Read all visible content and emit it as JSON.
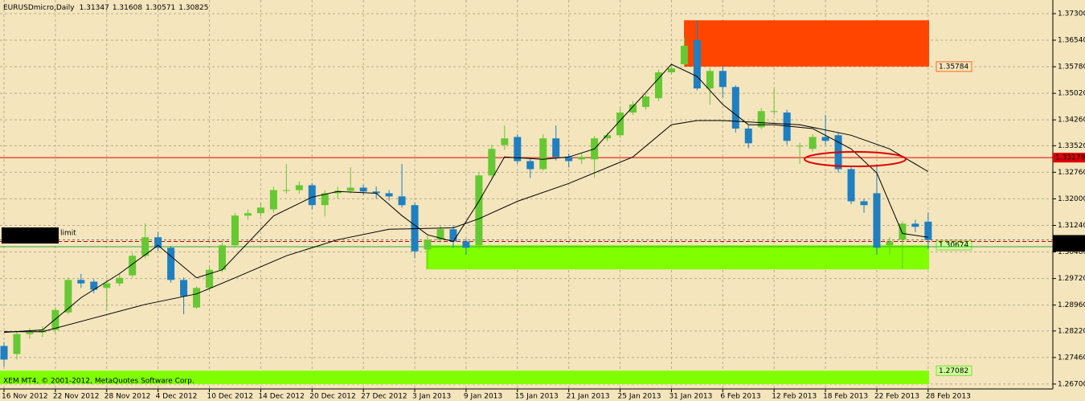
{
  "chart_data": {
    "type": "candlestick",
    "symbol": "EURUSDmicro,Daily",
    "copyright": "XEM MT4, © 2001-2012, MetaQuotes Software Corp.",
    "order_label": "limit",
    "up_color": "#66c832",
    "down_color": "#1f7fc0",
    "grid": true,
    "categories": [
      "16 Nov 2012",
      null,
      null,
      null,
      "22 Nov 2012",
      null,
      null,
      null,
      "28 Nov 2012",
      null,
      null,
      null,
      "4 Dec 2012",
      null,
      null,
      null,
      "10 Dec 2012",
      null,
      null,
      null,
      "14 Dec 2012",
      null,
      null,
      null,
      "20 Dec 2012",
      null,
      null,
      null,
      "27 Dec 2012",
      null,
      null,
      null,
      "3 Jan 2013",
      null,
      null,
      null,
      "9 Jan 2013",
      null,
      null,
      null,
      "15 Jan 2013",
      null,
      null,
      null,
      "21 Jan 2013",
      null,
      null,
      null,
      "25 Jan 2013",
      null,
      null,
      null,
      "31 Jan 2013",
      null,
      null,
      null,
      "6 Feb 2013",
      null,
      null,
      null,
      "12 Feb 2013",
      null,
      null,
      null,
      "18 Feb 2013",
      null,
      null,
      null,
      "22 Feb 2013",
      null,
      null,
      null,
      "28 Feb 2013"
    ],
    "open": [
      1.2779,
      1.2756,
      1.2813,
      1.2818,
      1.2825,
      1.2875,
      1.2968,
      1.2963,
      1.2945,
      1.2958,
      1.2981,
      1.3037,
      1.309,
      1.306,
      1.2968,
      1.2889,
      1.2945,
      1.2997,
      1.3067,
      1.3152,
      1.3159,
      1.317,
      1.3225,
      1.3225,
      1.3239,
      1.3182,
      1.3216,
      1.3223,
      1.3232,
      1.3221,
      1.3216,
      1.3207,
      1.3182,
      1.3055,
      1.3083,
      1.3113,
      1.3078,
      1.3067,
      1.3267,
      1.3354,
      1.3377,
      1.3308,
      1.3285,
      1.3373,
      1.332,
      1.3313,
      1.3313,
      1.3373,
      1.3382,
      1.3447,
      1.3463,
      1.3488,
      1.3562,
      1.3585,
      1.3654,
      1.3516,
      1.3566,
      1.352,
      1.3401,
      1.3405,
      1.3451,
      1.3447,
      1.335,
      1.3343,
      1.3377,
      1.3382,
      1.3285,
      1.3193,
      1.3216,
      1.3067,
      1.3083,
      1.3129,
      1.31347
    ],
    "high": [
      1.279,
      1.282,
      1.283,
      1.2835,
      1.289,
      1.2975,
      1.2985,
      1.297,
      1.2968,
      1.2985,
      1.3045,
      1.313,
      1.3105,
      1.3065,
      1.2975,
      1.295,
      1.3005,
      1.3075,
      1.316,
      1.317,
      1.319,
      1.3235,
      1.33,
      1.325,
      1.3245,
      1.3225,
      1.3235,
      1.329,
      1.324,
      1.3235,
      1.3225,
      1.33,
      1.319,
      1.3095,
      1.3125,
      1.3125,
      1.3085,
      1.3275,
      1.3355,
      1.341,
      1.3385,
      1.3315,
      1.3385,
      1.341,
      1.333,
      1.333,
      1.338,
      1.339,
      1.346,
      1.348,
      1.35,
      1.357,
      1.3585,
      1.366,
      1.3711,
      1.3575,
      1.358,
      1.3525,
      1.341,
      1.346,
      1.3516,
      1.3455,
      1.336,
      1.3385,
      1.344,
      1.339,
      1.3295,
      1.32,
      1.33,
      1.309,
      1.3135,
      1.314,
      1.31608
    ],
    "low": [
      1.272,
      1.274,
      1.28,
      1.2805,
      1.2815,
      1.287,
      1.2945,
      1.293,
      1.288,
      1.295,
      1.2975,
      1.303,
      1.305,
      1.296,
      1.287,
      1.2885,
      1.2935,
      1.299,
      1.306,
      1.314,
      1.315,
      1.316,
      1.3215,
      1.3215,
      1.317,
      1.315,
      1.32,
      1.3215,
      1.321,
      1.32,
      1.3195,
      1.3175,
      1.303,
      1.3,
      1.3075,
      1.306,
      1.304,
      1.3055,
      1.326,
      1.334,
      1.33,
      1.326,
      1.328,
      1.331,
      1.329,
      1.33,
      1.326,
      1.3365,
      1.3375,
      1.344,
      1.3455,
      1.348,
      1.3555,
      1.3578,
      1.351,
      1.347,
      1.349,
      1.339,
      1.3345,
      1.34,
      1.344,
      1.3355,
      1.33,
      1.3335,
      1.3355,
      1.3275,
      1.3185,
      1.316,
      1.304,
      1.304,
      1.3,
      1.3105,
      1.30571
    ],
    "close": [
      1.274,
      1.2813,
      1.2818,
      1.2825,
      1.2882,
      1.2968,
      1.2958,
      1.294,
      1.2958,
      1.2974,
      1.3037,
      1.309,
      1.306,
      1.2968,
      1.2921,
      1.2945,
      1.2997,
      1.3067,
      1.3152,
      1.3159,
      1.3175,
      1.3225,
      1.3225,
      1.3239,
      1.3182,
      1.3216,
      1.3223,
      1.3232,
      1.3221,
      1.3216,
      1.3207,
      1.3182,
      1.305,
      1.3083,
      1.3113,
      1.3078,
      1.306,
      1.3267,
      1.3343,
      1.3373,
      1.3308,
      1.3285,
      1.3373,
      1.332,
      1.3308,
      1.332,
      1.3373,
      1.3382,
      1.3447,
      1.347,
      1.3493,
      1.3562,
      1.3573,
      1.3638,
      1.3516,
      1.3566,
      1.352,
      1.3401,
      1.3359,
      1.3451,
      1.3451,
      1.3366,
      1.3352,
      1.3377,
      1.3366,
      1.3285,
      1.3193,
      1.3182,
      1.306,
      1.3078,
      1.3129,
      1.312,
      1.30825
    ],
    "moving_averages": [
      {
        "color": "#000000",
        "x": [
          0,
          3,
          6,
          9,
          12,
          15,
          17,
          21,
          24,
          26,
          29,
          31,
          33,
          35,
          37,
          39,
          42,
          44,
          46,
          48,
          50,
          52,
          54,
          56,
          58,
          60,
          63,
          66,
          68,
          70,
          72
        ],
        "values": [
          1.2818,
          1.2825,
          1.2917,
          1.2986,
          1.3067,
          1.2974,
          1.2997,
          1.3151,
          1.3205,
          1.3221,
          1.3216,
          1.3152,
          1.3097,
          1.3078,
          1.3193,
          1.332,
          1.3313,
          1.332,
          1.3343,
          1.3424,
          1.3504,
          1.3585,
          1.355,
          1.347,
          1.3412,
          1.3412,
          1.3401,
          1.3343,
          1.3274,
          1.3101,
          1.309
        ]
      },
      {
        "color": "#000000",
        "x": [
          0,
          3,
          7,
          11,
          15,
          18,
          22,
          26,
          30,
          35,
          37,
          40,
          44,
          49,
          52,
          54,
          56,
          62,
          66,
          69,
          72
        ],
        "values": [
          1.282,
          1.282,
          1.2859,
          1.2898,
          1.2928,
          1.2974,
          1.3037,
          1.3083,
          1.3113,
          1.3117,
          1.3143,
          1.3193,
          1.3244,
          1.332,
          1.3412,
          1.3424,
          1.3424,
          1.3412,
          1.3382,
          1.3343,
          1.3278
        ]
      }
    ],
    "zones": [
      {
        "edge": 1.35784,
        "far": 1.3711,
        "color": "#ff4500",
        "label_fill": "#f4e5bd",
        "label_color": "#ff6a1a"
      },
      {
        "edge": 1.30674,
        "far": 1.2998,
        "color": "#80ff00",
        "label_fill": "#ccff99",
        "label_color": "#8fd14f"
      },
      {
        "edge": 1.27082,
        "far": 1.267,
        "color": "#80ff00",
        "label_fill": "#ccff99",
        "label_color": "#8fd14f"
      }
    ],
    "hlines": [
      {
        "value": 1.33179,
        "color": "#e00000",
        "dashed": false,
        "label": true,
        "label_fill": "#e00000",
        "label_color": "#ffffff"
      },
      {
        "value": 1.3063,
        "color": "#33aa33",
        "dashed": false,
        "label": true,
        "label_fill": "#000000",
        "label_color": "#ffffff"
      },
      {
        "value": 1.3078,
        "color": "#cc0000",
        "dashed": true,
        "label": false
      }
    ],
    "ylim": [
      1.2656,
      1.3769
    ],
    "yticks": [
      {
        "value": 1.373,
        "label": "1.37300"
      },
      {
        "value": 1.3654,
        "label": "1.36540"
      },
      {
        "value": 1.3578,
        "label": "1.35780"
      },
      {
        "value": 1.3502,
        "label": "1.35020"
      },
      {
        "value": 1.3426,
        "label": "1.34260"
      },
      {
        "value": 1.3352,
        "label": "1.33520"
      },
      {
        "value": 1.3276,
        "label": "1.32760"
      },
      {
        "value": 1.32,
        "label": "1.32000"
      },
      {
        "value": 1.3124,
        "label": "1.31240"
      },
      {
        "value": 1.3048,
        "label": "1.30480"
      },
      {
        "value": 1.2972,
        "label": "1.29720"
      },
      {
        "value": 1.2896,
        "label": "1.28960"
      },
      {
        "value": 1.2822,
        "label": "1.28220"
      },
      {
        "value": 1.2746,
        "label": "1.27460"
      },
      {
        "value": 1.267,
        "label": "1.26700"
      }
    ]
  }
}
